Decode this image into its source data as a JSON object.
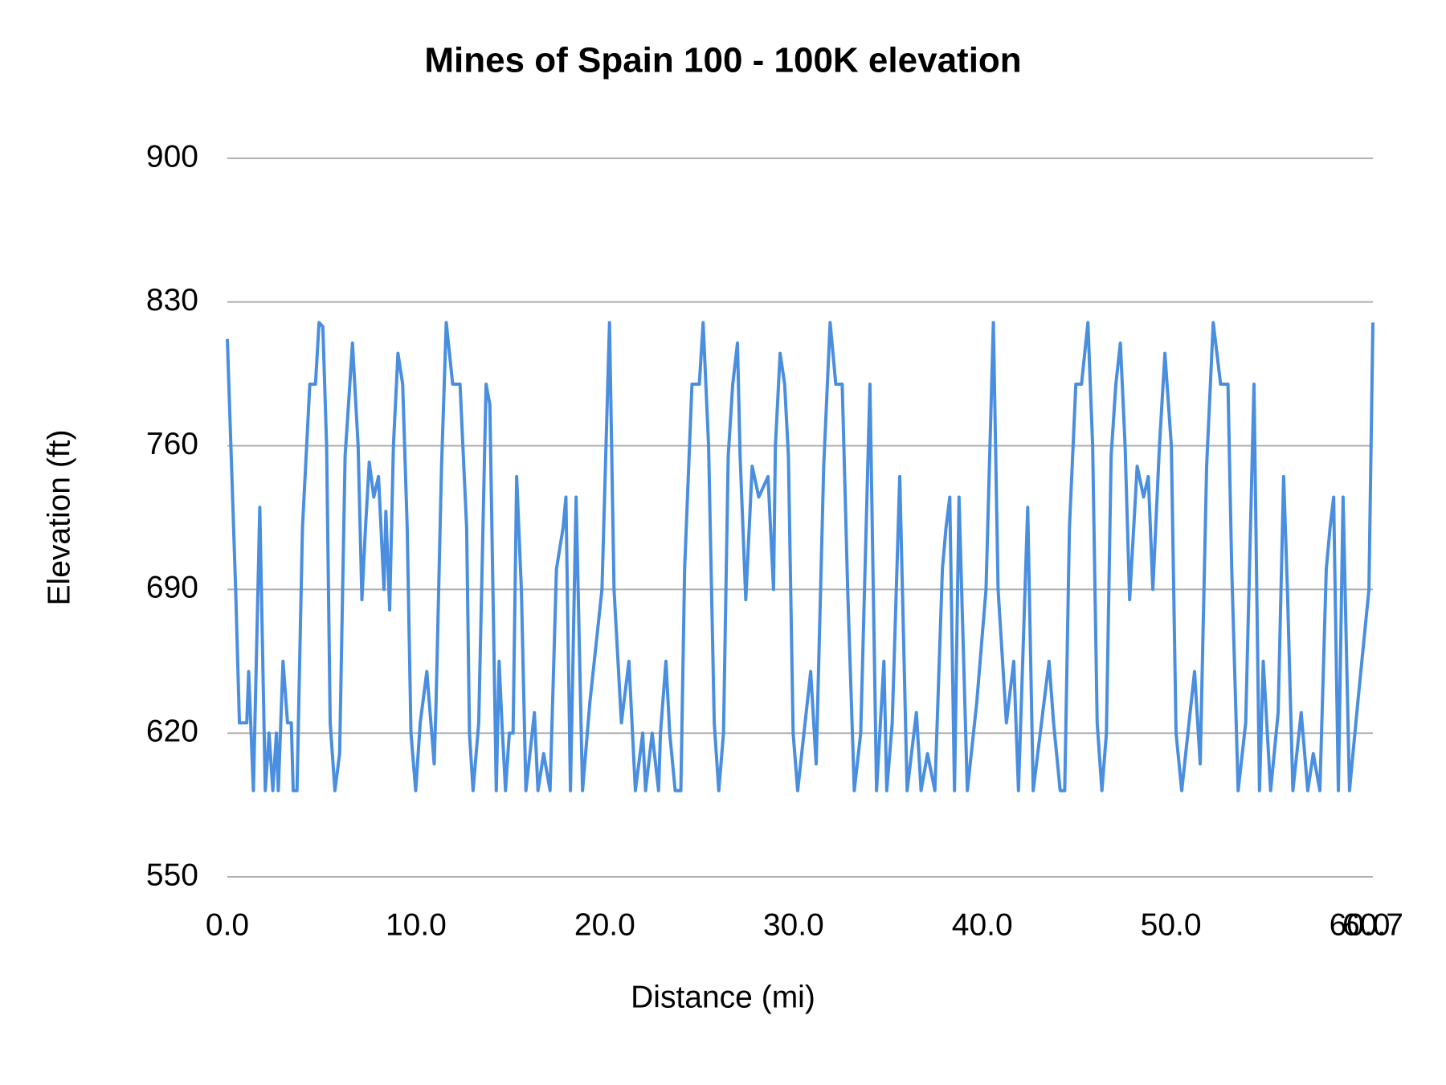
{
  "chart_data": {
    "type": "line",
    "title": "Mines of Spain 100 - 100K elevation",
    "x_label": "Distance (mi)",
    "y_label": "Elevation (ft)",
    "xlim": [
      0,
      60.7
    ],
    "xticks": [
      {
        "value": 0,
        "label": "0.0"
      },
      {
        "value": 10,
        "label": "10.0"
      },
      {
        "value": 20,
        "label": "20.0"
      },
      {
        "value": 30,
        "label": "30.0"
      },
      {
        "value": 40,
        "label": "40.0"
      },
      {
        "value": 50,
        "label": "50.0"
      },
      {
        "value": 60,
        "label": "60.0"
      },
      60.7
    ],
    "ylim": [
      550,
      900
    ],
    "yticks": [
      550,
      620,
      690,
      760,
      830,
      900
    ],
    "grid": true,
    "series": [
      {
        "name": "Elevation (ft)",
        "color": "#4a8ee0",
        "x": [
          0.0,
          0.44,
          0.64,
          1.03,
          1.13,
          1.38,
          1.72,
          2.01,
          2.21,
          2.41,
          2.6,
          2.7,
          2.95,
          3.19,
          3.39,
          3.49,
          3.69,
          3.98,
          4.37,
          4.67,
          4.86,
          5.06,
          5.26,
          5.45,
          5.7,
          5.95,
          6.24,
          6.49,
          6.63,
          6.93,
          7.13,
          7.32,
          7.52,
          7.76,
          8.01,
          8.3,
          8.4,
          8.6,
          8.8,
          9.04,
          9.29,
          9.53,
          9.73,
          9.98,
          10.22,
          10.57,
          10.96,
          11.06,
          11.35,
          11.6,
          11.94,
          12.33,
          12.68,
          12.83,
          13.02,
          13.32,
          13.71,
          13.91,
          14.25,
          14.4,
          14.55,
          14.74,
          14.94,
          15.14,
          15.33,
          15.58,
          15.82,
          16.27,
          16.46,
          16.76,
          17.1,
          17.44,
          17.79,
          17.94,
          18.18,
          18.48,
          18.82,
          19.21,
          19.85,
          20.25,
          20.49,
          20.88,
          21.28,
          21.62,
          22.01,
          22.16,
          22.51,
          22.85,
          22.95,
          23.24,
          23.44,
          23.73,
          24.03,
          24.23,
          24.62,
          25.01,
          25.21,
          25.5,
          25.8,
          26.04,
          26.29,
          26.54,
          26.78,
          27.03,
          27.17,
          27.47,
          27.81,
          28.16,
          28.65,
          28.94,
          29.04,
          29.29,
          29.53,
          29.73,
          29.98,
          30.22,
          30.91,
          31.2,
          31.6,
          31.94,
          32.24,
          32.58,
          32.87,
          33.22,
          33.56,
          34.05,
          34.4,
          34.79,
          34.94,
          35.23,
          35.63,
          36.02,
          36.51,
          36.76,
          37.1,
          37.49,
          37.89,
          38.08,
          38.28,
          38.53,
          38.77,
          39.21,
          39.71,
          40.2,
          40.59,
          40.84,
          41.28,
          41.67,
          41.92,
          42.41,
          42.7,
          43.14,
          43.54,
          43.78,
          44.13,
          44.37,
          44.62,
          44.96,
          45.26,
          45.6,
          45.85,
          46.09,
          46.34,
          46.58,
          46.83,
          47.08,
          47.32,
          47.57,
          47.81,
          48.21,
          48.55,
          48.8,
          49.04,
          49.39,
          49.68,
          50.02,
          50.27,
          50.57,
          51.25,
          51.55,
          51.89,
          52.24,
          52.63,
          53.02,
          53.22,
          53.56,
          53.96,
          54.4,
          54.69,
          54.89,
          55.28,
          55.68,
          55.97,
          56.17,
          56.46,
          56.9,
          57.25,
          57.54,
          57.89,
          58.23,
          58.43,
          58.62,
          58.87,
          59.12,
          59.46,
          59.9,
          60.49,
          60.7
        ],
        "values": [
          812,
          690,
          625,
          625,
          650,
          592,
          730,
          592,
          620,
          592,
          620,
          592,
          655,
          625,
          625,
          592,
          592,
          720,
          790,
          790,
          820,
          818,
          760,
          625,
          592,
          610,
          755,
          790,
          810,
          760,
          685,
          720,
          752,
          735,
          745,
          690,
          728,
          680,
          760,
          805,
          790,
          720,
          620,
          592,
          625,
          650,
          605,
          635,
          750,
          820,
          790,
          790,
          720,
          620,
          592,
          625,
          790,
          780,
          592,
          655,
          625,
          592,
          620,
          620,
          745,
          690,
          592,
          630,
          592,
          610,
          592,
          700,
          720,
          735,
          592,
          735,
          592,
          635,
          690,
          820,
          690,
          625,
          655,
          592,
          620,
          592,
          620,
          592,
          620,
          655,
          620,
          592,
          592,
          700,
          790,
          790,
          820,
          760,
          625,
          592,
          620,
          755,
          790,
          810,
          755,
          685,
          750,
          735,
          745,
          690,
          760,
          805,
          790,
          755,
          620,
          592,
          650,
          605,
          750,
          820,
          790,
          790,
          690,
          592,
          620,
          790,
          592,
          655,
          592,
          625,
          745,
          592,
          630,
          592,
          610,
          592,
          700,
          720,
          735,
          592,
          735,
          592,
          635,
          690,
          820,
          690,
          625,
          655,
          592,
          730,
          592,
          625,
          655,
          625,
          592,
          592,
          720,
          790,
          790,
          820,
          760,
          625,
          592,
          620,
          755,
          790,
          810,
          760,
          685,
          750,
          735,
          745,
          690,
          760,
          805,
          760,
          620,
          592,
          650,
          605,
          750,
          820,
          790,
          790,
          700,
          592,
          625,
          790,
          592,
          655,
          592,
          630,
          745,
          690,
          592,
          630,
          592,
          610,
          592,
          700,
          720,
          735,
          592,
          735,
          592,
          635,
          690,
          820
        ]
      }
    ]
  }
}
